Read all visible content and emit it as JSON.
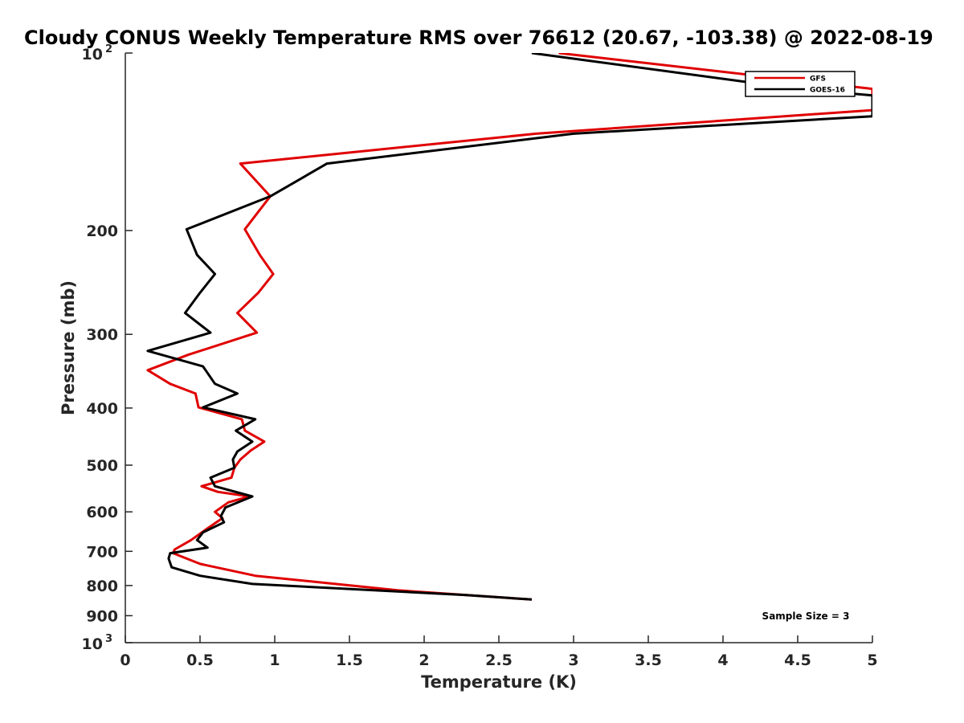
{
  "chart_data": {
    "type": "line",
    "title": "Cloudy CONUS Weekly Temperature RMS over 76612 (20.67, -103.38) @ 2022-08-19",
    "xlabel": "Temperature (K)",
    "ylabel": "Pressure (mb)",
    "xlim": [
      0,
      5
    ],
    "ylim": [
      1000,
      100
    ],
    "yscale": "log",
    "grid": false,
    "legend_position": "top-right",
    "xticks": [
      {
        "value": 0,
        "label": "0"
      },
      {
        "value": 0.5,
        "label": "0.5"
      },
      {
        "value": 1,
        "label": "1"
      },
      {
        "value": 1.5,
        "label": "1.5"
      },
      {
        "value": 2,
        "label": "2"
      },
      {
        "value": 2.5,
        "label": "2.5"
      },
      {
        "value": 3,
        "label": "3"
      },
      {
        "value": 3.5,
        "label": "3.5"
      },
      {
        "value": 4,
        "label": "4"
      },
      {
        "value": 4.5,
        "label": "4.5"
      },
      {
        "value": 5,
        "label": "5"
      }
    ],
    "yticks": [
      {
        "value": 100,
        "label": "10",
        "sup": "2"
      },
      {
        "value": 200,
        "label": "200",
        "sup": ""
      },
      {
        "value": 300,
        "label": "300",
        "sup": ""
      },
      {
        "value": 400,
        "label": "400",
        "sup": ""
      },
      {
        "value": 500,
        "label": "500",
        "sup": ""
      },
      {
        "value": 600,
        "label": "600",
        "sup": ""
      },
      {
        "value": 700,
        "label": "700",
        "sup": ""
      },
      {
        "value": 800,
        "label": "800",
        "sup": ""
      },
      {
        "value": 900,
        "label": "900",
        "sup": ""
      },
      {
        "value": 1000,
        "label": "10",
        "sup": "3"
      }
    ],
    "series": [
      {
        "name": "GFS",
        "color": "#e00000",
        "points": [
          [
            2.9,
            100
          ],
          [
            5.0,
            115
          ],
          [
            5.0,
            125
          ],
          [
            2.75,
            137
          ],
          [
            0.77,
            154
          ],
          [
            0.97,
            175
          ],
          [
            0.8,
            199
          ],
          [
            0.9,
            220
          ],
          [
            0.99,
            237
          ],
          [
            0.89,
            255
          ],
          [
            0.75,
            276
          ],
          [
            0.88,
            298
          ],
          [
            0.42,
            325
          ],
          [
            0.15,
            345
          ],
          [
            0.3,
            364
          ],
          [
            0.47,
            378
          ],
          [
            0.49,
            399
          ],
          [
            0.78,
            418
          ],
          [
            0.8,
            437
          ],
          [
            0.93,
            456
          ],
          [
            0.84,
            472
          ],
          [
            0.77,
            489
          ],
          [
            0.73,
            505
          ],
          [
            0.71,
            525
          ],
          [
            0.51,
            543
          ],
          [
            0.62,
            555
          ],
          [
            0.83,
            565
          ],
          [
            0.69,
            578
          ],
          [
            0.6,
            600
          ],
          [
            0.65,
            615
          ],
          [
            0.55,
            640
          ],
          [
            0.44,
            670
          ],
          [
            0.33,
            695
          ],
          [
            0.32,
            705
          ],
          [
            0.5,
            735
          ],
          [
            0.87,
            770
          ],
          [
            1.82,
            815
          ],
          [
            2.72,
            845
          ]
        ]
      },
      {
        "name": "GOES-16",
        "color": "#000000",
        "points": [
          [
            2.72,
            100
          ],
          [
            4.5,
            115
          ],
          [
            5.0,
            118
          ],
          [
            5.0,
            128
          ],
          [
            3.0,
            137
          ],
          [
            1.35,
            154
          ],
          [
            0.97,
            175
          ],
          [
            0.41,
            199
          ],
          [
            0.48,
            220
          ],
          [
            0.6,
            237
          ],
          [
            0.5,
            255
          ],
          [
            0.4,
            276
          ],
          [
            0.57,
            298
          ],
          [
            0.15,
            320
          ],
          [
            0.52,
            340
          ],
          [
            0.6,
            364
          ],
          [
            0.75,
            378
          ],
          [
            0.52,
            399
          ],
          [
            0.87,
            418
          ],
          [
            0.74,
            437
          ],
          [
            0.85,
            456
          ],
          [
            0.75,
            474
          ],
          [
            0.72,
            489
          ],
          [
            0.73,
            505
          ],
          [
            0.57,
            525
          ],
          [
            0.6,
            543
          ],
          [
            0.85,
            565
          ],
          [
            0.67,
            590
          ],
          [
            0.64,
            610
          ],
          [
            0.66,
            625
          ],
          [
            0.52,
            650
          ],
          [
            0.48,
            670
          ],
          [
            0.55,
            690
          ],
          [
            0.3,
            705
          ],
          [
            0.29,
            720
          ],
          [
            0.31,
            745
          ],
          [
            0.5,
            770
          ],
          [
            0.85,
            795
          ],
          [
            2.27,
            830
          ],
          [
            2.72,
            845
          ]
        ]
      }
    ],
    "annotations": [
      {
        "text": "Sample Size = 3",
        "position": "bottom-right"
      }
    ]
  }
}
